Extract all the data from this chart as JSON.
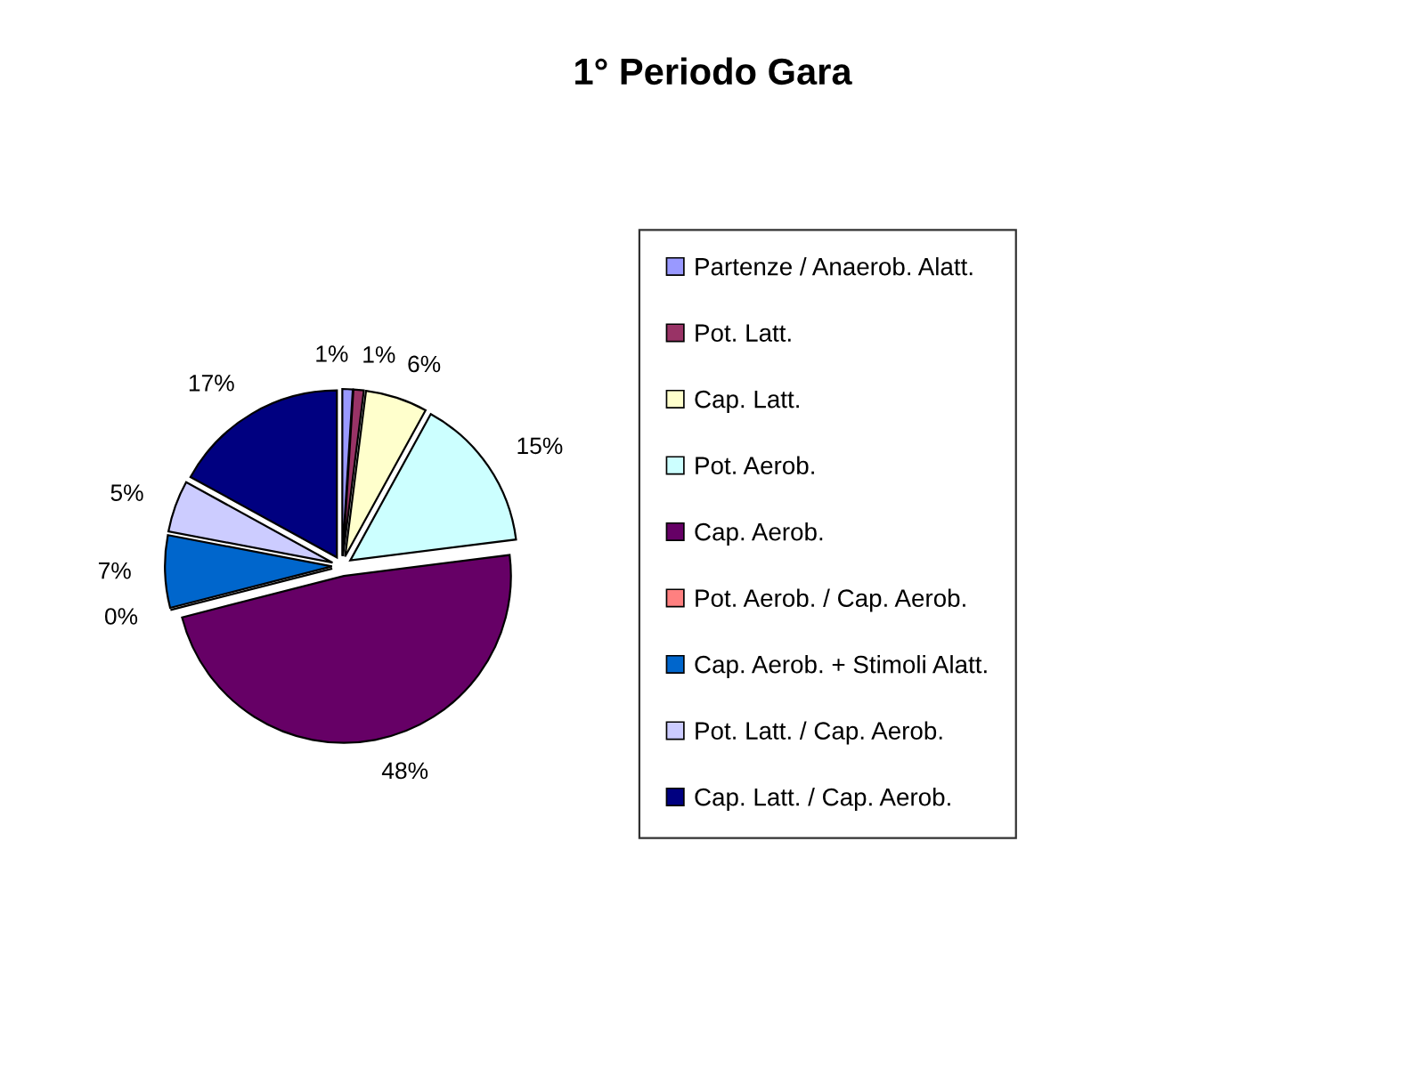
{
  "chart_data": {
    "type": "pie",
    "title": "1° Periodo Gara",
    "categories": [
      "Partenze / Anaerob. Alatt.",
      "Pot. Latt.",
      "Cap. Latt.",
      "Pot. Aerob.",
      "Cap. Aerob.",
      "Pot. Aerob. / Cap. Aerob.",
      "Cap. Aerob. + Stimoli Alatt.",
      "Pot. Latt. / Cap. Aerob.",
      "Cap. Latt. / Cap. Aerob."
    ],
    "values": [
      1,
      1,
      6,
      15,
      48,
      0,
      7,
      5,
      17
    ],
    "colors": [
      "#9999ff",
      "#993366",
      "#ffffcc",
      "#ccffff",
      "#660066",
      "#ff8080",
      "#0066cc",
      "#ccccff",
      "#000080"
    ],
    "value_labels": [
      "1%",
      "1%",
      "6%",
      "15%",
      "48%",
      "0%",
      "7%",
      "5%",
      "17%"
    ],
    "legend": "right"
  }
}
